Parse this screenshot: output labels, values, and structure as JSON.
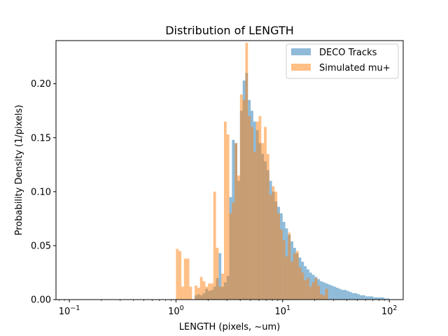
{
  "chart_data": {
    "type": "bar",
    "title": "Distribution of LENGTH",
    "xlabel": "LENGTH (pixels, ~um)",
    "ylabel": "Probability Density (1/pixels)",
    "xscale": "log",
    "xlim": [
      0.075,
      135
    ],
    "ylim": [
      0,
      0.24
    ],
    "yticks": [
      0.0,
      0.05,
      0.1,
      0.15,
      0.2
    ],
    "ytick_labels": [
      "0.00",
      "0.05",
      "0.10",
      "0.15",
      "0.20"
    ],
    "xtick_labels": [
      {
        "value": 0.1,
        "base": "10",
        "exp": "−1"
      },
      {
        "value": 1,
        "base": "10",
        "exp": "0"
      },
      {
        "value": 10,
        "base": "10",
        "exp": "1"
      },
      {
        "value": 100,
        "base": "10",
        "exp": "2"
      }
    ],
    "legend_position": "top-right",
    "grid": false,
    "bin_edges_note": "",
    "series": [
      {
        "name": "DECO Tracks",
        "color": "#1f77b4",
        "alpha": 0.5,
        "values": [
          0,
          0,
          0,
          0,
          0,
          0,
          0,
          0,
          0,
          0,
          0,
          0,
          0,
          0,
          0,
          0,
          0,
          0,
          0,
          0,
          0,
          0,
          0,
          0,
          0,
          0,
          0,
          0,
          0,
          0,
          0,
          0,
          0,
          0,
          0,
          0,
          0,
          0,
          0,
          0,
          0,
          0,
          0,
          0,
          0,
          0,
          0,
          0.004,
          0.005,
          0.004,
          0.006,
          0.01,
          0.008,
          0.009,
          0.012,
          0.02,
          0.043,
          0.012,
          0.016,
          0.022,
          0.095,
          0.148,
          0.145,
          0.11,
          0.175,
          0.203,
          0.21,
          0.185,
          0.175,
          0.165,
          0.157,
          0.145,
          0.135,
          0.128,
          0.12,
          0.11,
          0.1,
          0.091,
          0.086,
          0.08,
          0.072,
          0.066,
          0.06,
          0.054,
          0.048,
          0.043,
          0.039,
          0.035,
          0.031,
          0.028,
          0.025,
          0.023,
          0.021,
          0.019,
          0.017,
          0.016,
          0.015,
          0.014,
          0.013,
          0.012,
          0.011,
          0.01,
          0.009,
          0.009,
          0.008,
          0.007,
          0.006,
          0.006,
          0.005,
          0.004,
          0.004,
          0.003,
          0.003,
          0.003,
          0.002,
          0.002,
          0.002,
          0.002,
          0.001,
          0.001
        ]
      },
      {
        "name": "Simulated mu+",
        "color": "#ff7f0e",
        "alpha": 0.5,
        "values": [
          0,
          0,
          0,
          0,
          0,
          0,
          0,
          0,
          0,
          0,
          0,
          0,
          0,
          0,
          0,
          0,
          0,
          0,
          0,
          0,
          0,
          0,
          0,
          0,
          0,
          0,
          0,
          0,
          0,
          0,
          0,
          0,
          0,
          0,
          0,
          0,
          0,
          0,
          0,
          0,
          0.047,
          0.045,
          0.012,
          0.038,
          0.038,
          0.012,
          0,
          0.013,
          0.011,
          0.021,
          0.017,
          0.012,
          0.015,
          0.015,
          0.1,
          0.048,
          0.012,
          0.024,
          0.165,
          0.153,
          0.08,
          0.09,
          0.145,
          0.115,
          0.19,
          0.185,
          0.238,
          0.17,
          0.16,
          0.137,
          0.165,
          0.17,
          0.145,
          0.16,
          0.135,
          0.097,
          0.105,
          0.1,
          0.08,
          0.065,
          0.055,
          0.04,
          0.062,
          0.035,
          0.043,
          0.045,
          0.03,
          0.025,
          0.018,
          0.02,
          0.012,
          0.016,
          0.02,
          0.013,
          0.005,
          0.004,
          0.01,
          0,
          0,
          0,
          0,
          0,
          0,
          0,
          0,
          0,
          0,
          0,
          0,
          0,
          0,
          0,
          0,
          0,
          0,
          0,
          0,
          0,
          0,
          0
        ]
      }
    ]
  }
}
